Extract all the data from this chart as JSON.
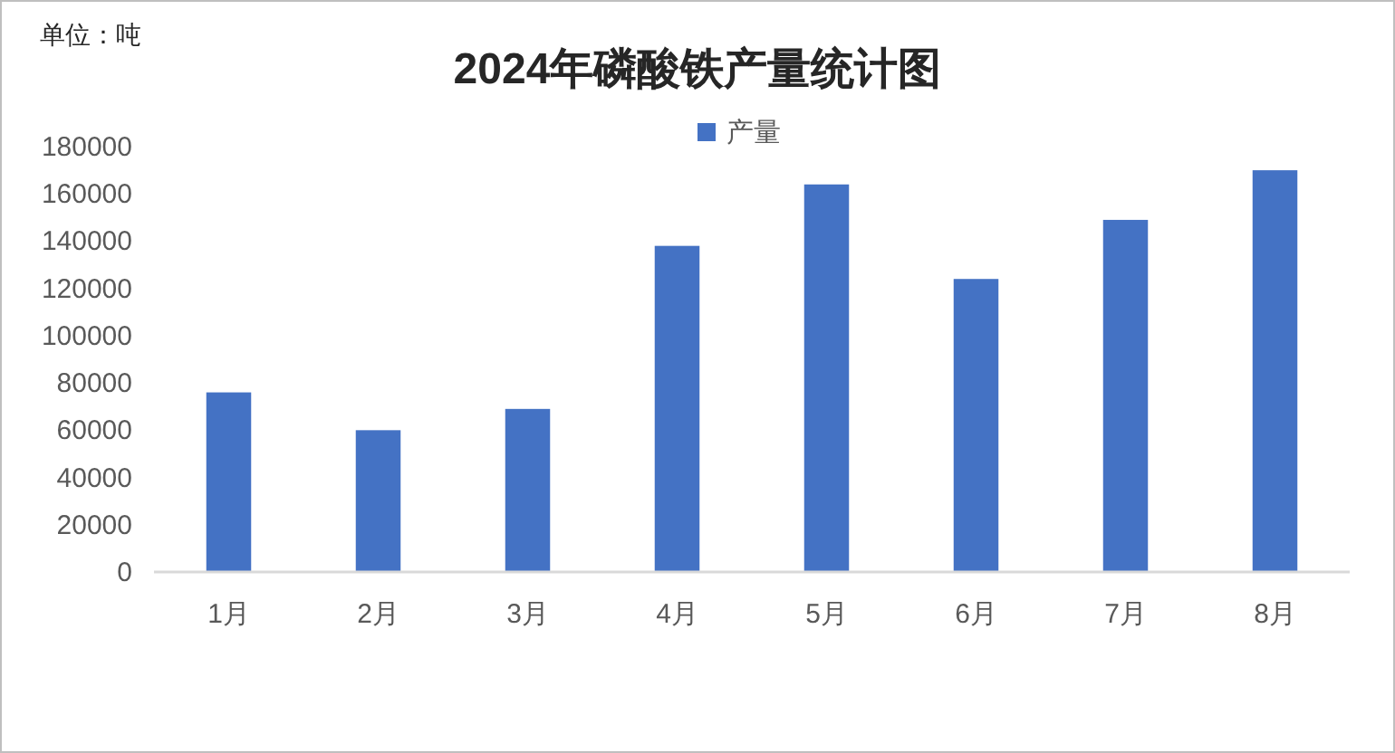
{
  "chart_data": {
    "type": "bar",
    "title": "2024年磷酸铁产量统计图",
    "annotations": [
      "单位：吨"
    ],
    "categories": [
      "1月",
      "2月",
      "3月",
      "4月",
      "5月",
      "6月",
      "7月",
      "8月"
    ],
    "series": [
      {
        "name": "产量",
        "color": "#4472c4",
        "values": [
          76000,
          60000,
          69000,
          138000,
          164000,
          124000,
          149000,
          170000
        ]
      }
    ],
    "ylim": [
      0,
      180000
    ],
    "yticks": [
      0,
      20000,
      40000,
      60000,
      80000,
      100000,
      120000,
      140000,
      160000,
      180000
    ],
    "grid": false,
    "legend": "top"
  }
}
